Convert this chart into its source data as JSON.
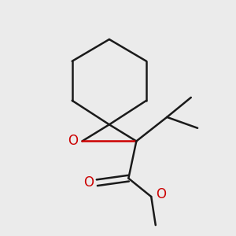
{
  "background_color": "#ebebeb",
  "bond_color": "#1a1a1a",
  "oxygen_color": "#cc0000",
  "bond_width": 1.8,
  "fig_size": [
    3.0,
    3.0
  ],
  "dpi": 100,
  "xlim": [
    -1.8,
    2.2
  ],
  "ylim": [
    -2.5,
    2.8
  ]
}
